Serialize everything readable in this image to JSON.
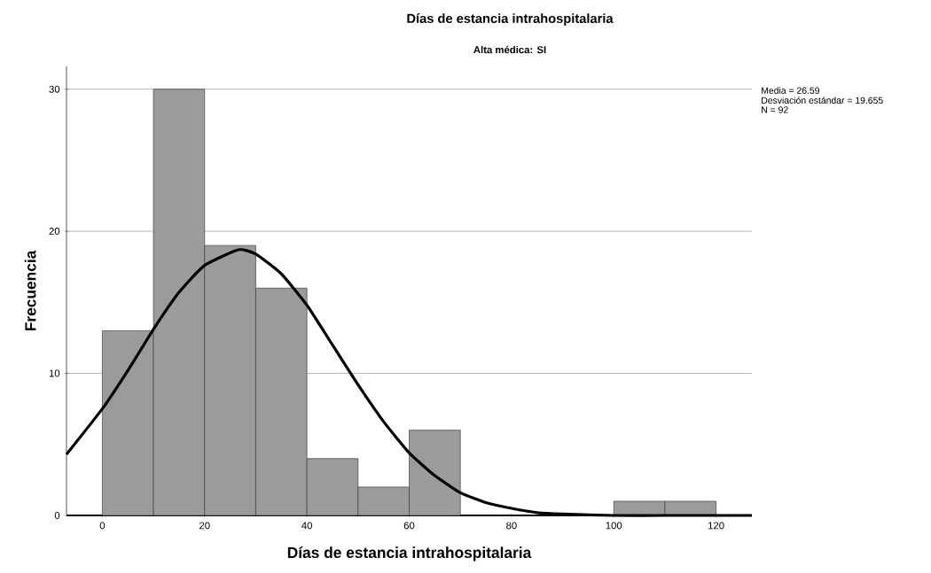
{
  "chart_data": {
    "type": "histogram",
    "title": "Días de estancia intrahospitalaria",
    "subtitle": "Alta médica: SI",
    "xlabel": "Días de estancia intrahospitalaria",
    "ylabel": "Frecuencia",
    "series": [
      {
        "color": "#9b9b9b",
        "bins": [
          0,
          10,
          20,
          30,
          40,
          50,
          60,
          70,
          80,
          90,
          100,
          110,
          120
        ],
        "values": [
          13,
          30,
          19,
          16,
          4,
          2,
          6,
          0,
          0,
          0,
          1,
          1
        ]
      },
      {
        "type": "line",
        "color": "#000000",
        "x": [
          -7,
          0,
          5,
          10,
          15,
          20,
          26.59,
          30,
          35,
          40,
          45,
          50,
          55,
          60,
          65,
          70,
          75,
          80,
          85,
          90,
          100,
          110,
          127
        ],
        "values": [
          4.3,
          7.5,
          10.2,
          13.1,
          15.7,
          17.6,
          18.7,
          18.4,
          17.0,
          14.8,
          12.0,
          9.2,
          6.6,
          4.4,
          2.8,
          1.6,
          0.9,
          0.5,
          0.2,
          0.1,
          0,
          0,
          0
        ]
      }
    ],
    "xlim": [
      -7,
      127
    ],
    "ylim": [
      0,
      31.6
    ],
    "xticks": [
      0,
      20,
      40,
      60,
      80,
      100,
      120
    ],
    "yticks": [
      0,
      10,
      20,
      30
    ],
    "grid": "y",
    "marker": "none",
    "line_style": "solid",
    "annotations": [
      "Media = 26.59",
      "Desviación estándar =    19.655",
      "N = 92"
    ]
  }
}
